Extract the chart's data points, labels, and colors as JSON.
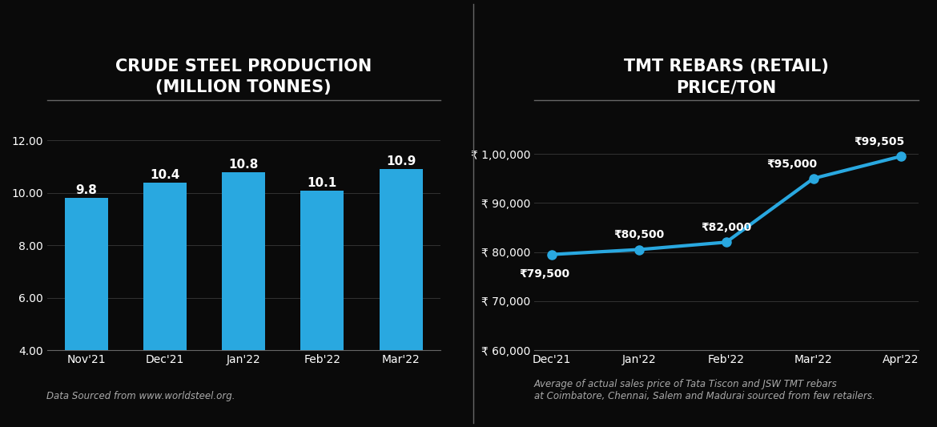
{
  "bg_color": "#0a0a0a",
  "text_color": "#ffffff",
  "bar_color": "#29a8e0",
  "line_color": "#29a8e0",
  "divider_color": "#666666",
  "grid_color": "#333333",
  "bar_title": "CRUDE STEEL PRODUCTION\n(MILLION TONNES)",
  "bar_categories": [
    "Nov'21",
    "Dec'21",
    "Jan'22",
    "Feb'22",
    "Mar'22"
  ],
  "bar_values": [
    9.8,
    10.4,
    10.8,
    10.1,
    10.9
  ],
  "bar_ylim": [
    4.0,
    12.8
  ],
  "bar_yticks": [
    4.0,
    6.0,
    8.0,
    10.0,
    12.0
  ],
  "bar_source": "Data Sourced from www.worldsteel.org.",
  "line_title": "TMT REBARS (RETAIL)\nPRICE/TON",
  "line_categories": [
    "Dec'21",
    "Jan'22",
    "Feb'22",
    "Mar'22",
    "Apr'22"
  ],
  "line_values": [
    79500,
    80500,
    82000,
    95000,
    99505
  ],
  "line_labels": [
    "₹79,500",
    "₹80,500",
    "₹82,000",
    "₹95,000",
    "₹99,505"
  ],
  "line_label_dx": [
    -0.08,
    0.0,
    0.0,
    -0.25,
    -0.25
  ],
  "line_label_dy": [
    -5200,
    1800,
    1800,
    1800,
    1800
  ],
  "line_label_ha": [
    "center",
    "center",
    "center",
    "center",
    "center"
  ],
  "line_ylim": [
    60000,
    107000
  ],
  "line_yticks": [
    60000,
    70000,
    80000,
    90000,
    100000
  ],
  "line_ytick_labels": [
    "₹ 60,000",
    "₹ 70,000",
    "₹ 80,000",
    "₹ 90,000",
    "₹ 1,00,000"
  ],
  "line_source": "Average of actual sales price of Tata Tiscon and JSW TMT rebars\nat Coimbatore, Chennai, Salem and Madurai sourced from few retailers."
}
